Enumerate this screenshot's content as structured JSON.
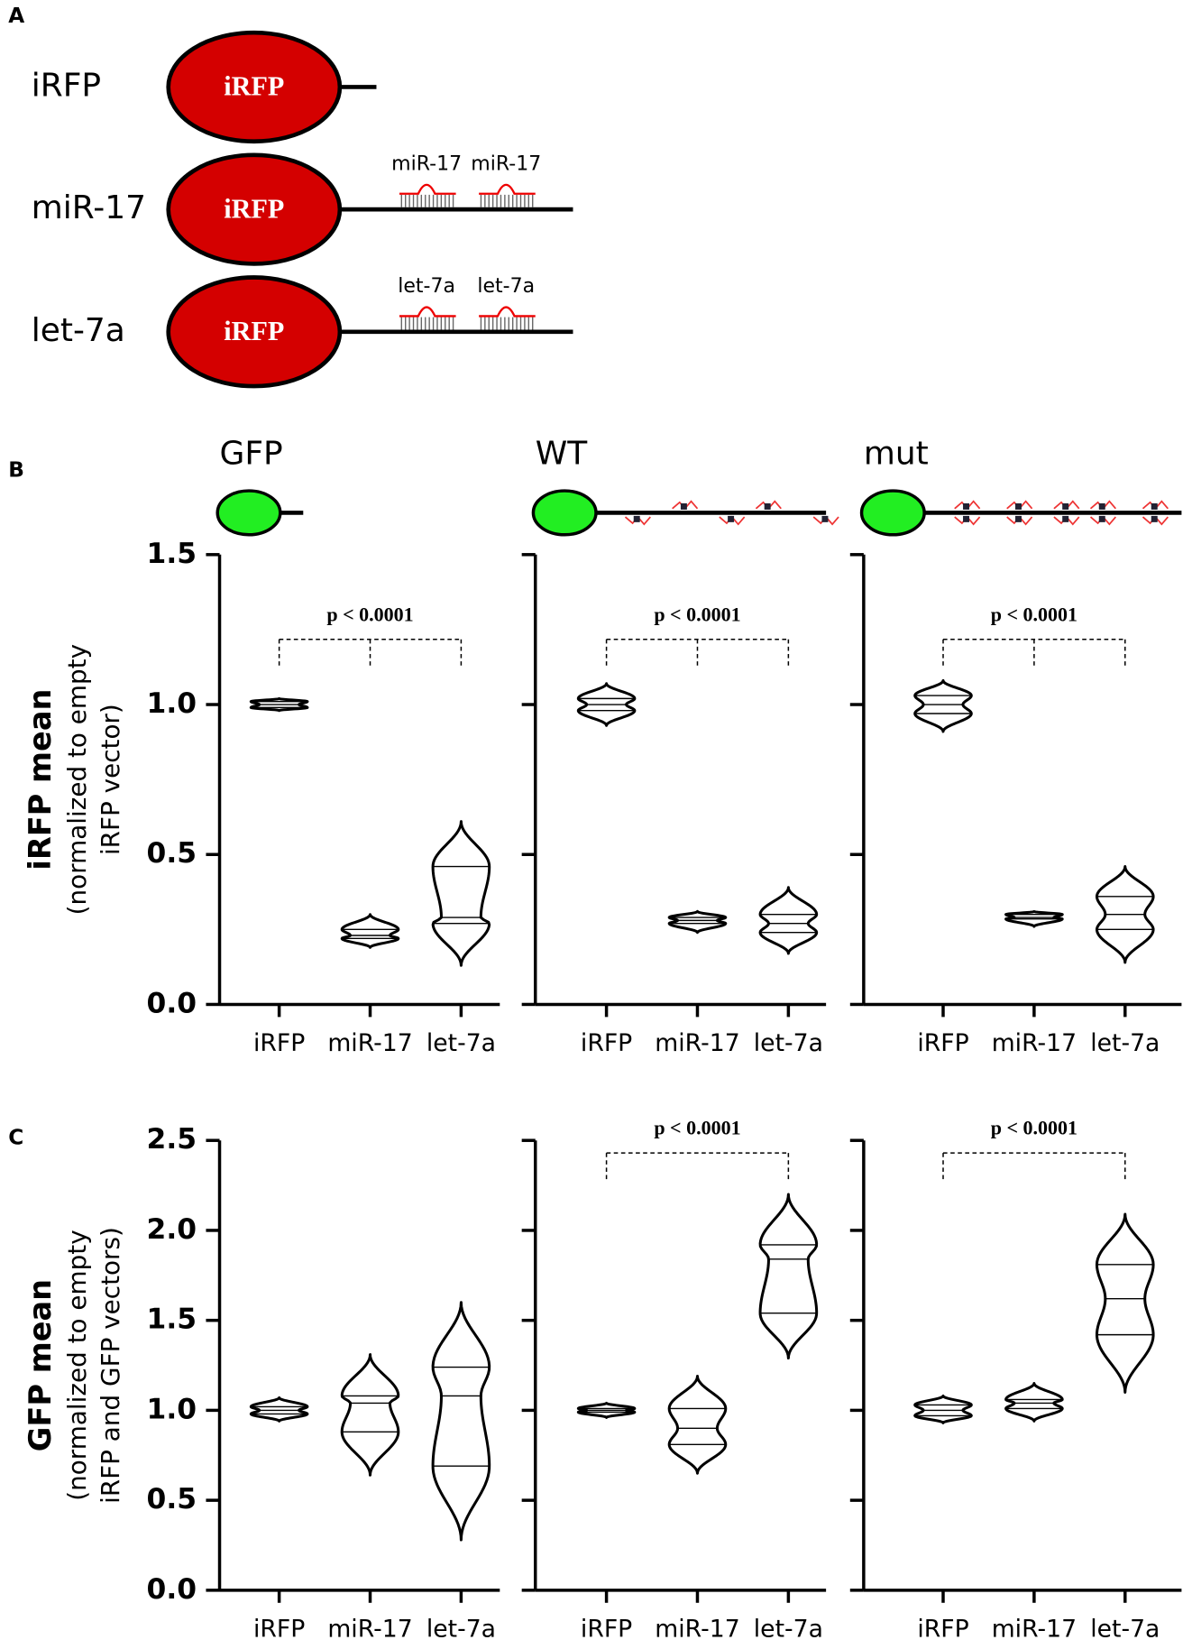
{
  "panel_labels": [
    "A",
    "B",
    "C"
  ],
  "diagram": {
    "constructs": [
      {
        "name": "iRFP",
        "body": "iRFP",
        "sites": []
      },
      {
        "name": "miR-17",
        "body": "iRFP",
        "sites": [
          "miR-17",
          "miR-17"
        ]
      },
      {
        "name": "let-7a",
        "body": "iRFP",
        "sites": [
          "let-7a",
          "let-7a"
        ]
      }
    ]
  },
  "chart_data": [
    {
      "type": "violin",
      "title": "GFP",
      "ylabel": "iRFP mean",
      "ylabel_note": [
        "(normalized to empty",
        "iRFP vector)"
      ],
      "categories": [
        "iRFP",
        "miR-17",
        "let-7a"
      ],
      "ylim": [
        0,
        1.5
      ],
      "yticks": [
        {
          "value": 0,
          "label": "0.0"
        },
        {
          "value": 0.5,
          "label": "0.5"
        },
        {
          "value": 1,
          "label": "1.0"
        },
        {
          "value": 1.5,
          "label": "1.5"
        }
      ],
      "show_tick_labels": true,
      "violins": [
        {
          "min": 0.98,
          "q1": 0.99,
          "median": 1.0,
          "q3": 1.01,
          "max": 1.02
        },
        {
          "min": 0.19,
          "q1": 0.22,
          "median": 0.23,
          "q3": 0.25,
          "max": 0.3
        },
        {
          "min": 0.13,
          "q1": 0.27,
          "median": 0.29,
          "q3": 0.46,
          "max": 0.61
        }
      ],
      "annotation": "p < 0.0001",
      "bracket": [
        0,
        1,
        2
      ]
    },
    {
      "type": "violin",
      "title": "WT",
      "categories": [
        "iRFP",
        "miR-17",
        "let-7a"
      ],
      "ylim": [
        0,
        1.5
      ],
      "yticks": [
        0,
        0.5,
        1,
        1.5
      ],
      "show_tick_labels": false,
      "violins": [
        {
          "min": 0.93,
          "q1": 0.98,
          "median": 1.0,
          "q3": 1.02,
          "max": 1.07
        },
        {
          "min": 0.24,
          "q1": 0.27,
          "median": 0.28,
          "q3": 0.29,
          "max": 0.31
        },
        {
          "min": 0.17,
          "q1": 0.24,
          "median": 0.27,
          "q3": 0.3,
          "max": 0.39
        }
      ],
      "annotation": "p < 0.0001",
      "bracket": [
        0,
        1,
        2
      ]
    },
    {
      "type": "violin",
      "title": "mut",
      "categories": [
        "iRFP",
        "miR-17",
        "let-7a"
      ],
      "ylim": [
        0,
        1.5
      ],
      "yticks": [
        0,
        0.5,
        1,
        1.5
      ],
      "show_tick_labels": false,
      "violins": [
        {
          "min": 0.91,
          "q1": 0.97,
          "median": 1.0,
          "q3": 1.03,
          "max": 1.08
        },
        {
          "min": 0.26,
          "q1": 0.285,
          "median": 0.29,
          "q3": 0.3,
          "max": 0.31
        },
        {
          "min": 0.14,
          "q1": 0.25,
          "median": 0.3,
          "q3": 0.36,
          "max": 0.46
        }
      ],
      "annotation": "p < 0.0001",
      "bracket": [
        0,
        1,
        2
      ]
    },
    {
      "type": "violin",
      "ylabel": "GFP mean",
      "ylabel_note": [
        "(normalized to empty",
        "iRFP and GFP vectors)"
      ],
      "categories": [
        "iRFP",
        "miR-17",
        "let-7a"
      ],
      "ylim": [
        0,
        2.5
      ],
      "yticks": [
        {
          "value": 0,
          "label": "0.0"
        },
        {
          "value": 0.5,
          "label": "0.5"
        },
        {
          "value": 1,
          "label": "1.0"
        },
        {
          "value": 1.5,
          "label": "1.5"
        },
        {
          "value": 2,
          "label": "2.0"
        },
        {
          "value": 2.5,
          "label": "2.5"
        }
      ],
      "show_tick_labels": true,
      "violins": [
        {
          "min": 0.94,
          "q1": 0.98,
          "median": 1.0,
          "q3": 1.02,
          "max": 1.07
        },
        {
          "min": 0.64,
          "q1": 0.88,
          "median": 1.04,
          "q3": 1.08,
          "max": 1.31
        },
        {
          "min": 0.28,
          "q1": 0.69,
          "median": 1.08,
          "q3": 1.24,
          "max": 1.6
        }
      ]
    },
    {
      "type": "violin",
      "categories": [
        "iRFP",
        "miR-17",
        "let-7a"
      ],
      "ylim": [
        0,
        2.5
      ],
      "yticks": [
        0,
        0.5,
        1,
        1.5,
        2,
        2.5
      ],
      "show_tick_labels": false,
      "violins": [
        {
          "min": 0.96,
          "q1": 0.99,
          "median": 1.0,
          "q3": 1.01,
          "max": 1.04
        },
        {
          "min": 0.65,
          "q1": 0.81,
          "median": 0.9,
          "q3": 1.01,
          "max": 1.19
        },
        {
          "min": 1.29,
          "q1": 1.54,
          "median": 1.84,
          "q3": 1.92,
          "max": 2.2
        }
      ],
      "annotation": "p < 0.0001",
      "bracket": [
        0,
        2
      ]
    },
    {
      "type": "violin",
      "categories": [
        "iRFP",
        "miR-17",
        "let-7a"
      ],
      "ylim": [
        0,
        2.5
      ],
      "yticks": [
        0,
        0.5,
        1,
        1.5,
        2,
        2.5
      ],
      "show_tick_labels": false,
      "violins": [
        {
          "min": 0.93,
          "q1": 0.97,
          "median": 1.0,
          "q3": 1.03,
          "max": 1.08
        },
        {
          "min": 0.94,
          "q1": 1.01,
          "median": 1.04,
          "q3": 1.06,
          "max": 1.15
        },
        {
          "min": 1.1,
          "q1": 1.42,
          "median": 1.62,
          "q3": 1.81,
          "max": 2.09
        }
      ],
      "annotation": "p < 0.0001",
      "bracket": [
        0,
        2
      ]
    }
  ]
}
